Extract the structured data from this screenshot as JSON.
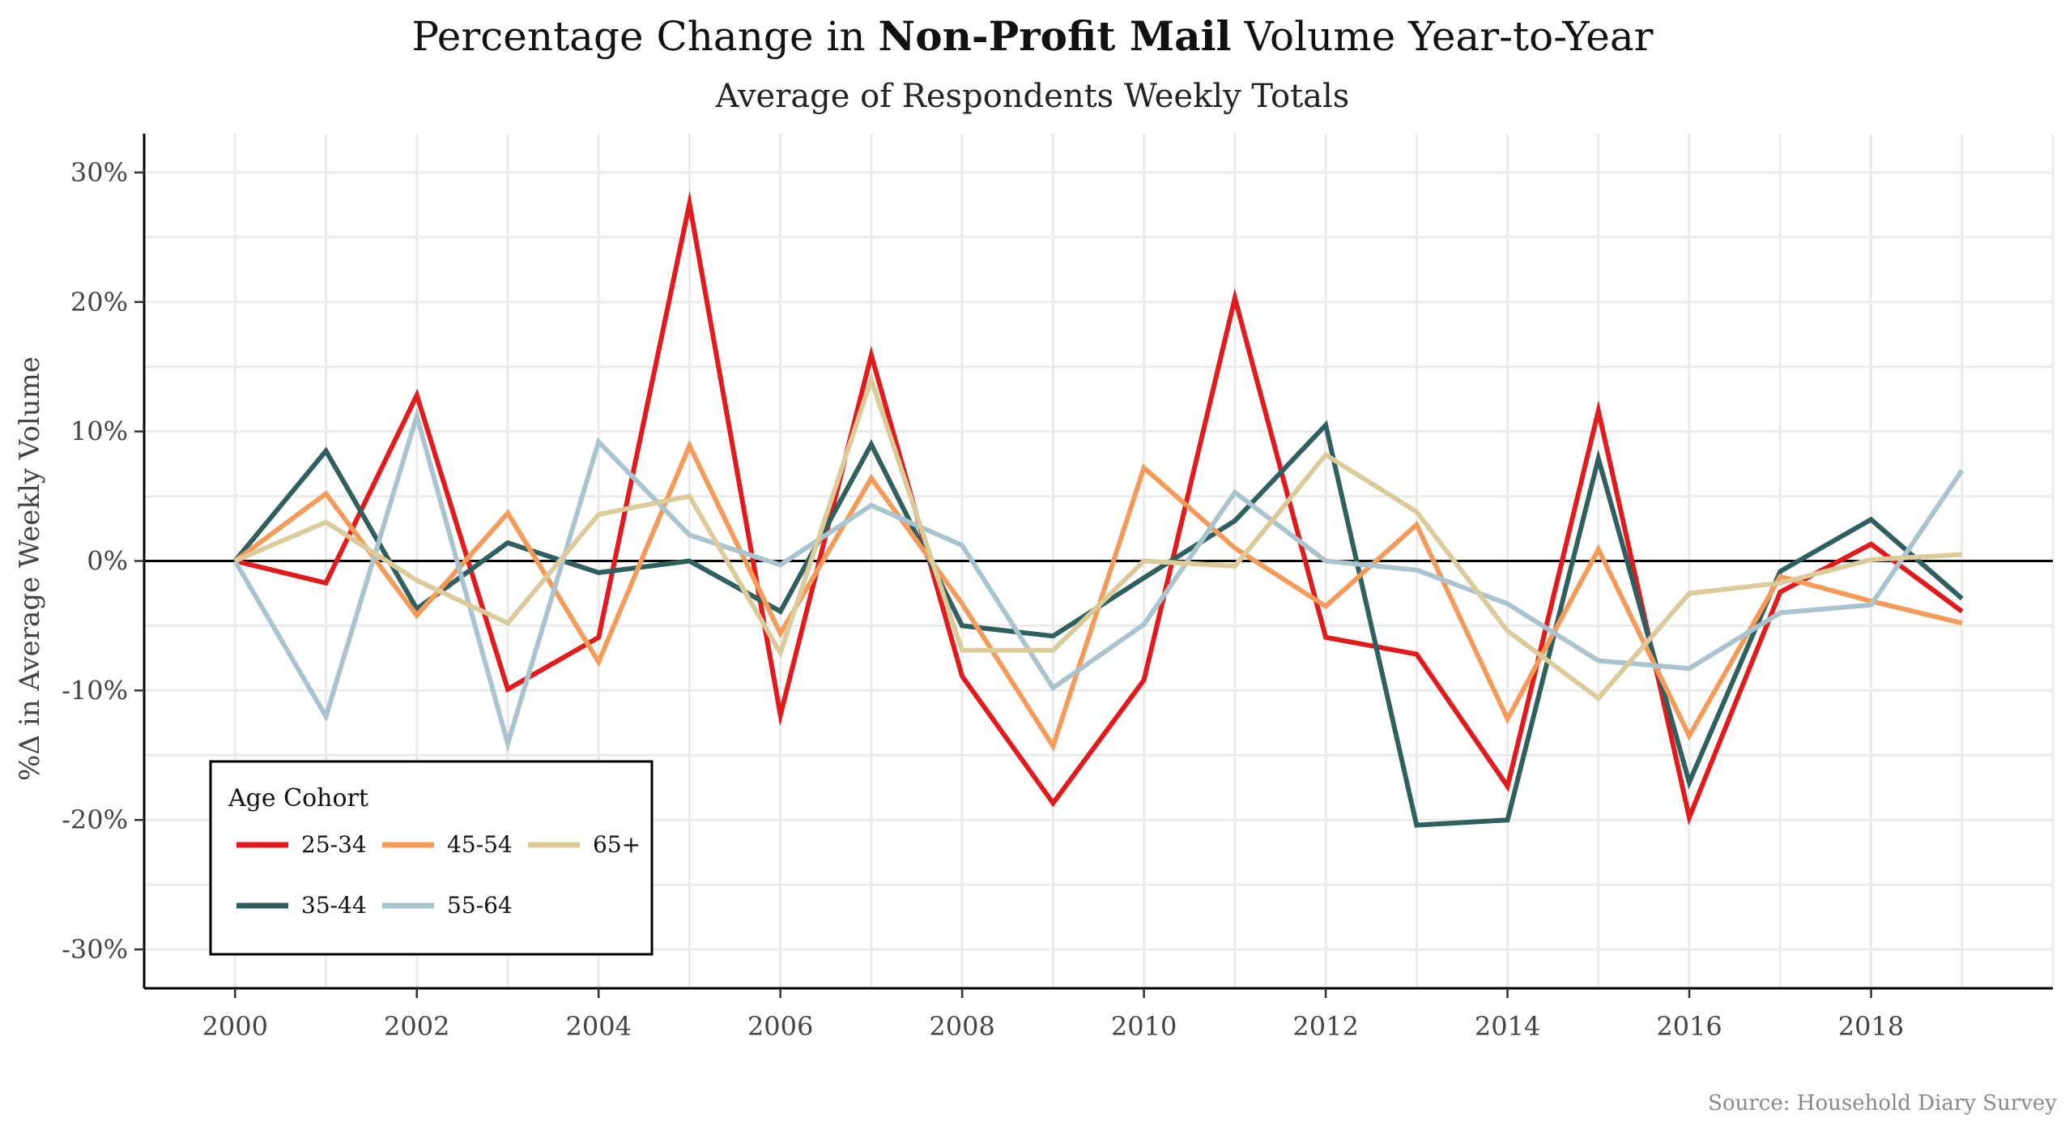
{
  "chart_data": {
    "type": "line",
    "title_parts": {
      "pre": "Percentage Change in ",
      "bold": "Non-Profit Mail",
      "post": " Volume Year-to-Year"
    },
    "subtitle": "Average of Respondents Weekly Totals",
    "xlabel": "",
    "ylabel": "%Δ in Average Weekly Volume",
    "caption": "Source: Household Diary Survey",
    "xlim": [
      1999,
      2020
    ],
    "ylim": [
      -33,
      33
    ],
    "x_ticks": [
      2000,
      2002,
      2004,
      2006,
      2008,
      2010,
      2012,
      2014,
      2016,
      2018
    ],
    "y_ticks": [
      -30,
      -20,
      -10,
      0,
      10,
      20,
      30
    ],
    "y_tick_labels": [
      "-30%",
      "-20%",
      "-10%",
      "0%",
      "10%",
      "20%",
      "30%"
    ],
    "grid": true,
    "zero_line": true,
    "x": [
      2000,
      2001,
      2002,
      2003,
      2004,
      2005,
      2006,
      2007,
      2008,
      2009,
      2010,
      2011,
      2012,
      2013,
      2014,
      2015,
      2016,
      2017,
      2018,
      2019
    ],
    "legend": {
      "title": "Age Cohort",
      "position": "bottom-left"
    },
    "series": [
      {
        "name": "25-34",
        "color": "#e31a1c",
        "values": [
          0,
          -1.7,
          12.8,
          -9.9,
          -5.9,
          27.6,
          -11.9,
          15.9,
          -8.9,
          -18.7,
          -9.2,
          20.3,
          -5.9,
          -7.2,
          -17.4,
          11.6,
          -19.8,
          -2.4,
          1.3,
          -3.9
        ]
      },
      {
        "name": "35-44",
        "color": "#2f5f5f",
        "values": [
          0,
          8.5,
          -3.7,
          1.4,
          -0.9,
          0,
          -3.9,
          9,
          -5,
          -5.8,
          -1.3,
          3.1,
          10.5,
          -20.4,
          -20,
          7.9,
          -17.1,
          -0.8,
          3.2,
          -2.9
        ]
      },
      {
        "name": "45-54",
        "color": "#f59b5a",
        "values": [
          0,
          5.2,
          -4.2,
          3.7,
          -7.8,
          8.9,
          -5.6,
          6.4,
          -3.3,
          -14.3,
          7.2,
          1,
          -3.5,
          2.8,
          -12.2,
          0.9,
          -13.5,
          -1.2,
          -3.1,
          -4.8
        ]
      },
      {
        "name": "55-64",
        "color": "#a9c4cf",
        "values": [
          0,
          -12,
          11.2,
          -14.1,
          9.2,
          2,
          -0.3,
          4.3,
          1.2,
          -9.8,
          -4.9,
          5.3,
          0,
          -0.7,
          -3.3,
          -7.7,
          -8.3,
          -4,
          -3.4,
          7
        ]
      },
      {
        "name": "65+",
        "color": "#dccb9a",
        "values": [
          0,
          3,
          -1.5,
          -4.8,
          3.6,
          5,
          -7.1,
          14,
          -6.9,
          -6.9,
          0,
          -0.4,
          8.2,
          3.8,
          -5.4,
          -10.6,
          -2.5,
          -1.7,
          0.1,
          0.5
        ]
      }
    ]
  }
}
